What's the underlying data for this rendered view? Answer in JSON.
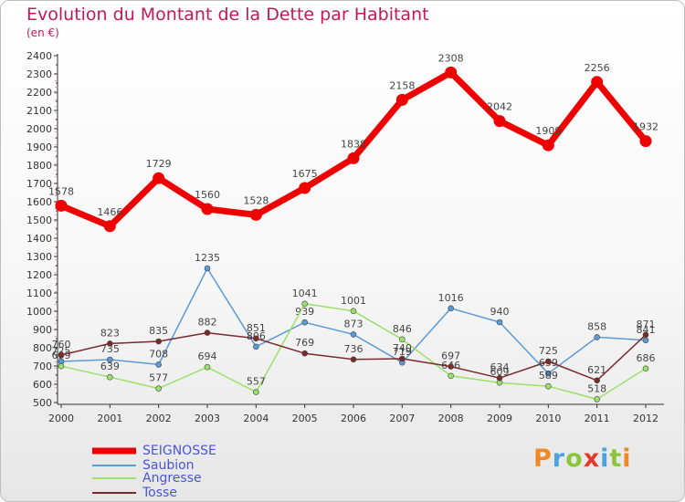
{
  "title": "Evolution du Montant de la Dette par Habitant",
  "subtitle": "(en €)",
  "logo": {
    "text": "Proxiti",
    "letters": [
      {
        "ch": "P",
        "color": "#f08a24"
      },
      {
        "ch": "r",
        "color": "#4aa3df"
      },
      {
        "ch": "o",
        "color": "#8cc63f"
      },
      {
        "ch": "x",
        "color": "#e23b2e"
      },
      {
        "ch": "i",
        "color": "#4aa3df"
      },
      {
        "ch": "t",
        "color": "#8cc63f"
      },
      {
        "ch": "i",
        "color": "#f08a24"
      }
    ]
  },
  "chart_data": {
    "type": "line",
    "x": [
      "2000",
      "2001",
      "2002",
      "2003",
      "2004",
      "2005",
      "2006",
      "2007",
      "2008",
      "2009",
      "2010",
      "2011",
      "2012"
    ],
    "ylim": [
      500,
      2400
    ],
    "yticks": [
      500,
      600,
      700,
      800,
      900,
      1000,
      1100,
      1200,
      1300,
      1400,
      1500,
      1600,
      1700,
      1800,
      1900,
      2000,
      2100,
      2200,
      2300,
      2400
    ],
    "grid": false,
    "legend_position": "bottom-left",
    "series": [
      {
        "name": "SEIGNOSSE",
        "color": "#ee0000",
        "width": 7,
        "values": [
          1578,
          1466,
          1729,
          1560,
          1528,
          1675,
          1838,
          2158,
          2308,
          2042,
          1909,
          2256,
          1932
        ],
        "labels": [
          "1578",
          "1466",
          "1729",
          "1560",
          "1528",
          "1675",
          "1838",
          "2158",
          "2308",
          "2042",
          "1909",
          "2256",
          "1932"
        ]
      },
      {
        "name": "Saubion",
        "color": "#5b9bd5",
        "width": 1.5,
        "values": [
          725,
          735,
          708,
          1235,
          806,
          939,
          873,
          719,
          1016,
          940,
          659,
          858,
          841
        ],
        "labels": [
          "725",
          "735",
          "708",
          "1235",
          "806",
          "939",
          "873",
          "719",
          "1016",
          "940",
          "659",
          "858",
          "841"
        ]
      },
      {
        "name": "Angresse",
        "color": "#9be06a",
        "width": 1.5,
        "values": [
          699,
          639,
          577,
          694,
          557,
          1041,
          1001,
          846,
          646,
          609,
          589,
          518,
          686
        ],
        "labels": [
          "699",
          "639",
          "577",
          "694",
          "557",
          "1041",
          "1001",
          "846",
          "646",
          "609",
          "589",
          "518",
          "686"
        ]
      },
      {
        "name": "Tosse",
        "color": "#7a2a2a",
        "width": 1.5,
        "values": [
          760,
          823,
          835,
          882,
          851,
          769,
          736,
          740,
          697,
          634,
          725,
          621,
          871
        ],
        "labels": [
          "760",
          "823",
          "835",
          "882",
          "851",
          "769",
          "736",
          "740",
          "697",
          "634",
          "725",
          "621",
          "871"
        ]
      }
    ]
  }
}
